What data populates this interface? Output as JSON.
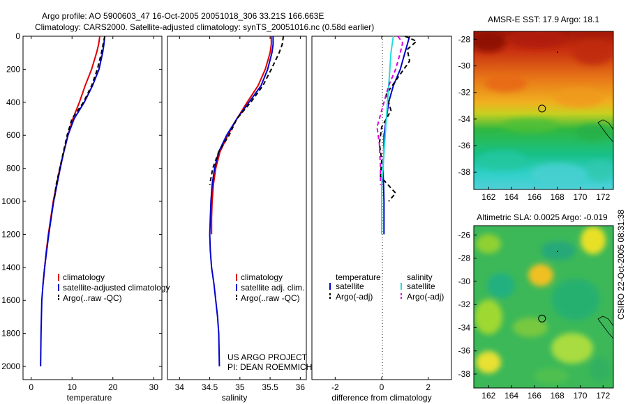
{
  "header": {
    "line1": "Argo profile: AO 5900603_47 16-Oct-2005 20051018_306 33.21S 166.663E",
    "line2": "Climatology: CARS2000. Satellite-adjusted climatology: synTS_20051016.nc (0.58d earlier)"
  },
  "credit": {
    "project": "US ARGO PROJECT",
    "pi": "PI: DEAN ROEMMICH",
    "csiro": "CSIRO 22-Oct-2005 08:31:38"
  },
  "colors": {
    "red": "#dd0000",
    "blue": "#0000cc",
    "black": "#000000",
    "cyan": "#22dddd",
    "magenta": "#dd00dd"
  },
  "chart_data": [
    {
      "type": "line",
      "id": "temperature",
      "xlabel": "temperature",
      "ylabel": "",
      "xlim": [
        -2,
        32
      ],
      "ylim": [
        2080,
        0
      ],
      "xticks": [
        0,
        10,
        20,
        30
      ],
      "yticks": [
        0,
        200,
        400,
        600,
        800,
        1000,
        1200,
        1400,
        1600,
        1800,
        2000
      ],
      "legend": [
        "climatology",
        "satellite-adjusted climatology",
        "Argo(..raw -QC)"
      ],
      "series": [
        {
          "name": "climatology",
          "color": "red",
          "dash": "",
          "x": [
            16.8,
            16.5,
            16.0,
            14.8,
            13.2,
            11.8,
            10.2,
            9.0,
            8.0,
            7.0,
            6.2,
            5.4,
            4.8,
            4.2,
            3.7,
            3.3,
            2.9
          ],
          "y": [
            0,
            50,
            100,
            200,
            300,
            400,
            500,
            600,
            700,
            800,
            900,
            1000,
            1100,
            1200,
            1300,
            1400,
            1500
          ]
        },
        {
          "name": "satellite",
          "color": "blue",
          "dash": "",
          "x": [
            18.0,
            17.8,
            17.5,
            16.6,
            15.0,
            13.0,
            10.5,
            9.0,
            8.0,
            7.1,
            6.3,
            5.5,
            4.9,
            4.3,
            3.8,
            3.3,
            2.9,
            2.6,
            2.4,
            2.3
          ],
          "y": [
            0,
            50,
            100,
            200,
            300,
            400,
            500,
            600,
            700,
            800,
            900,
            1000,
            1100,
            1200,
            1300,
            1400,
            1500,
            1600,
            1800,
            2000
          ]
        },
        {
          "name": "Argo",
          "color": "black",
          "dash": "6,4",
          "x": [
            18.0,
            17.6,
            17.2,
            16.2,
            14.8,
            12.8,
            10.0,
            8.8,
            7.9,
            7.0,
            6.1,
            5.6
          ],
          "y": [
            0,
            50,
            100,
            200,
            300,
            400,
            500,
            600,
            700,
            800,
            900,
            1000
          ]
        }
      ]
    },
    {
      "type": "line",
      "id": "salinity",
      "xlabel": "salinity",
      "ylabel": "",
      "xlim": [
        33.8,
        36.1
      ],
      "ylim": [
        2080,
        0
      ],
      "xticks": [
        34,
        34.5,
        35,
        35.5,
        36
      ],
      "yticks": [],
      "legend": [
        "climatology",
        "satellite adj. clim.",
        "Argo(..raw -QC)"
      ],
      "series": [
        {
          "name": "climatology",
          "color": "red",
          "dash": "",
          "x": [
            35.52,
            35.52,
            35.5,
            35.42,
            35.3,
            35.12,
            34.95,
            34.8,
            34.67,
            34.6,
            34.56,
            34.54,
            34.53,
            34.53
          ],
          "y": [
            0,
            50,
            100,
            200,
            300,
            400,
            500,
            600,
            700,
            800,
            900,
            1000,
            1100,
            1200
          ]
        },
        {
          "name": "satellite",
          "color": "blue",
          "dash": "",
          "x": [
            35.55,
            35.55,
            35.53,
            35.46,
            35.35,
            35.15,
            34.95,
            34.78,
            34.65,
            34.58,
            34.54,
            34.52,
            34.51,
            34.5,
            34.51,
            34.53,
            34.57,
            34.6,
            34.63,
            34.65,
            34.66
          ],
          "y": [
            0,
            50,
            100,
            200,
            300,
            400,
            500,
            600,
            700,
            800,
            900,
            1000,
            1100,
            1200,
            1300,
            1400,
            1500,
            1600,
            1700,
            1800,
            2000
          ]
        },
        {
          "name": "Argo",
          "color": "black",
          "dash": "6,4",
          "x": [
            35.72,
            35.7,
            35.65,
            35.52,
            35.38,
            35.18,
            34.95,
            34.82,
            34.65,
            34.55,
            34.5
          ],
          "y": [
            0,
            50,
            100,
            200,
            300,
            400,
            500,
            600,
            700,
            800,
            900
          ]
        }
      ]
    },
    {
      "type": "line",
      "id": "difference",
      "xlabel": "difference from climatology",
      "ylabel": "",
      "xlim": [
        -3,
        3
      ],
      "ylim": [
        2080,
        0
      ],
      "xticks": [
        -2,
        0,
        2
      ],
      "yticks": [],
      "legend_headers": [
        "temperature",
        "salinity"
      ],
      "legend": [
        "satellite",
        "Argo(-adj)",
        "satellite",
        "Argo(-adj)"
      ],
      "series": [
        {
          "name": "temperature satellite",
          "color": "blue",
          "dash": "",
          "x": [
            1.2,
            1.1,
            1.0,
            0.8,
            0.5,
            0.3,
            0.2,
            0.1,
            0.1,
            0.05,
            0.08,
            0.1,
            0.1,
            0.1,
            0.1
          ],
          "y": [
            0,
            50,
            100,
            200,
            300,
            400,
            500,
            600,
            700,
            800,
            900,
            1000,
            1100,
            1200,
            1200
          ]
        },
        {
          "name": "temperature Argo(-adj)",
          "color": "black",
          "dash": "6,4",
          "x": [
            1.0,
            1.5,
            1.1,
            1.2,
            0.7,
            0.2,
            0.4,
            0.0,
            -0.1,
            0.0,
            -0.05,
            0.6,
            0.3
          ],
          "y": [
            0,
            30,
            80,
            150,
            250,
            350,
            450,
            550,
            650,
            750,
            850,
            950,
            1000
          ]
        },
        {
          "name": "salinity satellite",
          "color": "cyan",
          "dash": "",
          "x": [
            0.5,
            0.45,
            0.4,
            0.35,
            0.3,
            0.25,
            0.2,
            0.15,
            0.1,
            0.05,
            0.0,
            0.0,
            0.0
          ],
          "y": [
            0,
            50,
            100,
            200,
            300,
            400,
            500,
            600,
            700,
            800,
            900,
            1000,
            1200
          ]
        },
        {
          "name": "salinity Argo(-adj)",
          "color": "magenta",
          "dash": "6,4",
          "x": [
            0.7,
            0.9,
            0.8,
            0.6,
            0.3,
            0.1,
            -0.1,
            -0.2,
            -0.1,
            -0.05,
            -0.05
          ],
          "y": [
            0,
            40,
            100,
            200,
            300,
            400,
            500,
            550,
            650,
            800,
            900
          ]
        }
      ]
    }
  ],
  "maps": [
    {
      "id": "sst",
      "title": "AMSR-E SST: 17.9 Argo: 18.1",
      "xticks": [
        "162",
        "164",
        "166",
        "168",
        "170",
        "172"
      ],
      "yticks": [
        "-28",
        "-30",
        "-32",
        "-34",
        "-36",
        "-38"
      ],
      "extent": {
        "lon": [
          160.7,
          172.9
        ],
        "lat": [
          -39.3,
          -27.4
        ]
      },
      "float": {
        "lon": 166.663,
        "lat": -33.21
      }
    },
    {
      "id": "sla",
      "title": "Altimetric SLA: 0.0025 Argo: -0.019",
      "xticks": [
        "162",
        "164",
        "166",
        "168",
        "170",
        "172"
      ],
      "yticks": [
        "-26",
        "-28",
        "-30",
        "-32",
        "-34",
        "-36",
        "-38"
      ],
      "extent": {
        "lon": [
          160.7,
          172.9
        ],
        "lat": [
          -39.2,
          -25.2
        ]
      },
      "float": {
        "lon": 166.663,
        "lat": -33.21
      }
    }
  ]
}
